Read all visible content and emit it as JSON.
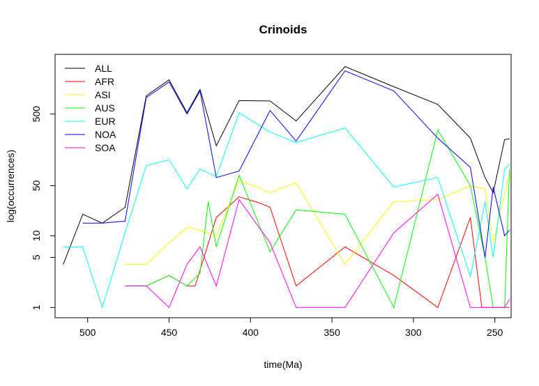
{
  "chart_data": {
    "type": "line",
    "title": "Crinoids",
    "xlabel": "time(Ma)",
    "ylabel": "log(occurrences)",
    "xlim": [
      520,
      240
    ],
    "x_reversed": true,
    "y_scale": "log",
    "ylim": [
      0.72,
      3400
    ],
    "xticks": [
      500,
      450,
      400,
      350,
      300,
      250
    ],
    "yticks": [
      1,
      5,
      10,
      50,
      500
    ],
    "legend_position": "top-left",
    "grid": false,
    "series": [
      {
        "name": "ALL",
        "color": "#000000",
        "x": [
          515,
          503,
          491,
          477,
          464,
          450,
          439,
          431,
          421,
          407,
          388,
          372,
          342,
          312,
          285,
          265,
          256,
          251,
          244,
          241
        ],
        "y": [
          4,
          20,
          15,
          25,
          900,
          1500,
          520,
          1100,
          180,
          770,
          760,
          400,
          2300,
          1200,
          680,
          230,
          65,
          40,
          220,
          225
        ]
      },
      {
        "name": "AFR",
        "color": "#ff0000",
        "x": [
          477,
          464,
          450,
          439,
          434,
          421,
          407,
          395,
          388,
          372,
          342,
          312,
          285,
          265,
          258,
          251,
          241
        ],
        "y": [
          2,
          2,
          2.8,
          2,
          2,
          18,
          35,
          29,
          25,
          2,
          7,
          2.8,
          1,
          18,
          1,
          1,
          1
        ]
      },
      {
        "name": "ASI",
        "color": "#ffff00",
        "x": [
          477,
          464,
          450,
          439,
          434,
          421,
          407,
          388,
          372,
          342,
          312,
          285,
          265,
          256,
          251,
          241
        ],
        "y": [
          4,
          4,
          8,
          13,
          12.5,
          10,
          60,
          40,
          55,
          4,
          30,
          32,
          50,
          45,
          8,
          75
        ]
      },
      {
        "name": "AUS",
        "color": "#00ff00",
        "x": [
          477,
          464,
          450,
          439,
          431,
          426,
          421,
          407,
          388,
          372,
          342,
          312,
          285,
          265,
          256,
          251,
          244,
          241
        ],
        "y": [
          2,
          2,
          2.8,
          2,
          3,
          30,
          7,
          70,
          6,
          23,
          20,
          1,
          300,
          50,
          5,
          1,
          1,
          85
        ]
      },
      {
        "name": "EUR",
        "color": "#00ffff",
        "x": [
          515,
          503,
          491,
          477,
          464,
          450,
          439,
          431,
          421,
          407,
          388,
          372,
          342,
          312,
          285,
          265,
          256,
          251,
          244,
          241
        ],
        "y": [
          7,
          7,
          1,
          11,
          95,
          115,
          45,
          85,
          67,
          520,
          280,
          200,
          320,
          48,
          65,
          2.7,
          30,
          5,
          85,
          100
        ]
      },
      {
        "name": "NOA",
        "color": "#0000ff",
        "x": [
          503,
          491,
          477,
          464,
          450,
          439,
          431,
          421,
          407,
          388,
          372,
          342,
          312,
          285,
          265,
          256,
          251,
          244,
          241
        ],
        "y": [
          15,
          15,
          16,
          850,
          1400,
          500,
          1050,
          65,
          80,
          560,
          210,
          2000,
          1050,
          230,
          90,
          5,
          48,
          10,
          12
        ]
      },
      {
        "name": "SOA",
        "color": "#ff00ff",
        "x": [
          477,
          464,
          450,
          439,
          431,
          421,
          407,
          388,
          372,
          342,
          312,
          285,
          265,
          251,
          244,
          241
        ],
        "y": [
          2,
          2,
          1,
          4,
          7,
          2,
          32,
          8,
          1,
          1,
          11,
          38,
          1,
          1,
          1,
          1.3
        ]
      }
    ]
  }
}
